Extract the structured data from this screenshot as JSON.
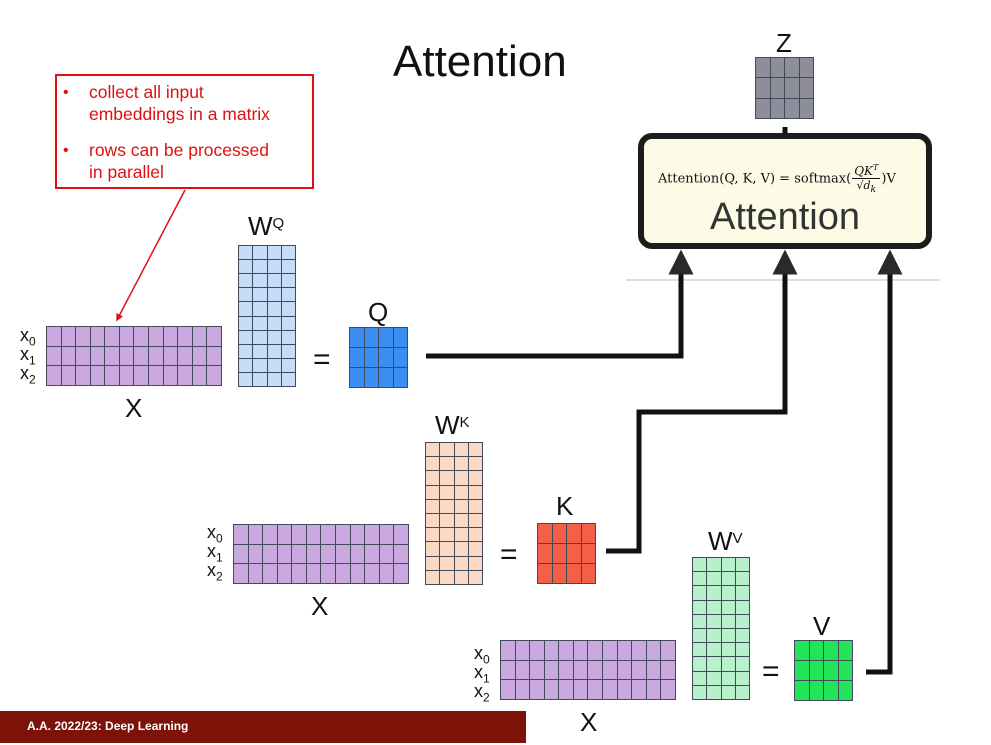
{
  "title": "Attention",
  "callout": {
    "bullet": "•",
    "items": [
      {
        "line1": "collect all input",
        "line2": "embeddings in a matrix"
      },
      {
        "line1": "rows can be processed",
        "line2": "in parallel"
      }
    ]
  },
  "attention_block": {
    "formula_lhs": "Attention(Q, K, V) = softmax(",
    "formula_num": "QK",
    "formula_num_sup": "T",
    "formula_den": "√d",
    "formula_den_sub": "k",
    "formula_rhs": ")V",
    "label": "Attention"
  },
  "matrices": {
    "z": "Z",
    "q": "Q",
    "k": "K",
    "v": "V",
    "x": "X",
    "w_base": "W",
    "wq_sup": "Q",
    "wk_sup": "K",
    "wv_sup": "V",
    "x_row_base": "x",
    "x_rows": [
      "0",
      "1",
      "2"
    ],
    "equals": "="
  },
  "colors": {
    "x_matrix": "#c9a8e0",
    "wq_matrix": "#c5dcf8",
    "wk_matrix": "#f9d8c4",
    "wv_matrix": "#b8f0cc",
    "q_matrix": "#3b8ff2",
    "k_matrix": "#f26049",
    "v_matrix": "#22e35a",
    "z_matrix": "#8e8e9a",
    "grid": "#404a5a",
    "callout": "#e01010",
    "footer": "#7c1208"
  },
  "footer": "A.A. 2022/23: Deep Learning"
}
